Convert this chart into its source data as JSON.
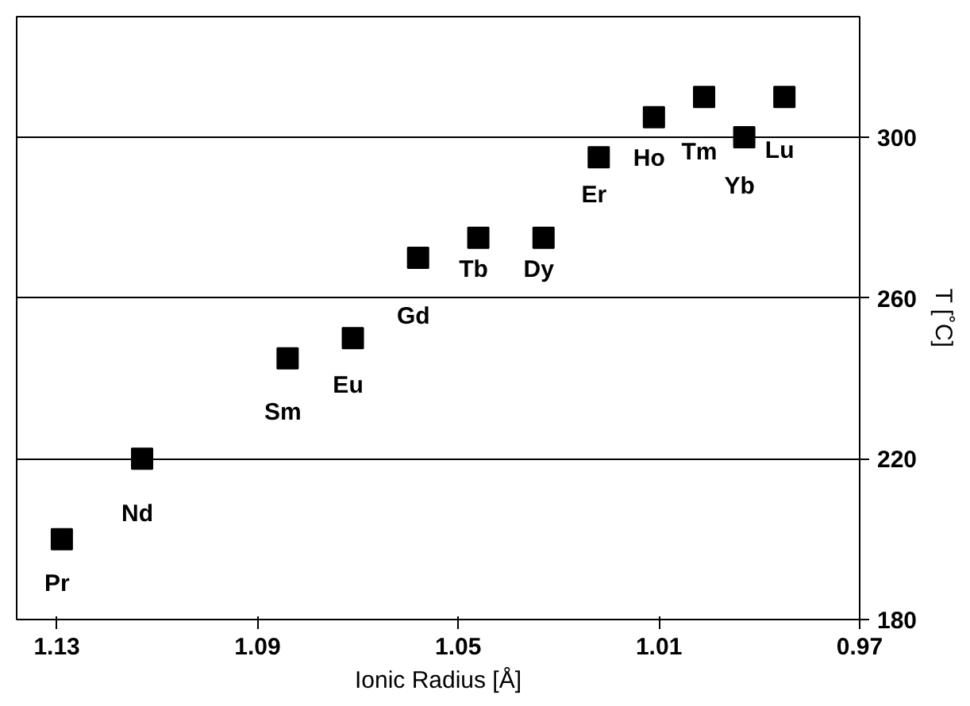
{
  "chart_data": {
    "type": "scatter",
    "xlabel": "Ionic Radius [Å]",
    "ylabel": "T [˚C]",
    "x": [
      1.129,
      1.113,
      1.084,
      1.071,
      1.058,
      1.046,
      1.033,
      1.022,
      1.011,
      1.001,
      0.993,
      0.985
    ],
    "series": [
      {
        "color": "#000000",
        "values": [
          200,
          220,
          245,
          250,
          270,
          275,
          275,
          295,
          305,
          310,
          300,
          310
        ]
      }
    ],
    "marker": "square",
    "xlim": [
      1.138,
      0.97
    ],
    "xticks": [
      1.13,
      1.09,
      1.05,
      1.01,
      0.97
    ],
    "ylim": [
      180,
      330
    ],
    "yticks": [
      180,
      220,
      260,
      300
    ],
    "grid": "y",
    "annotations": [
      {
        "text": "Pr",
        "x": 1.129,
        "y": 200
      },
      {
        "text": "Nd",
        "x": 1.113,
        "y": 220
      },
      {
        "text": "Sm",
        "x": 1.084,
        "y": 245
      },
      {
        "text": "Eu",
        "x": 1.071,
        "y": 250
      },
      {
        "text": "Gd",
        "x": 1.058,
        "y": 270
      },
      {
        "text": "Tb",
        "x": 1.046,
        "y": 275
      },
      {
        "text": "Dy",
        "x": 1.033,
        "y": 275
      },
      {
        "text": "Er",
        "x": 1.022,
        "y": 295
      },
      {
        "text": "Ho",
        "x": 1.011,
        "y": 305
      },
      {
        "text": "Tm",
        "x": 1.001,
        "y": 310
      },
      {
        "text": "Yb",
        "x": 0.993,
        "y": 300
      },
      {
        "text": "Lu",
        "x": 0.985,
        "y": 310
      }
    ]
  }
}
